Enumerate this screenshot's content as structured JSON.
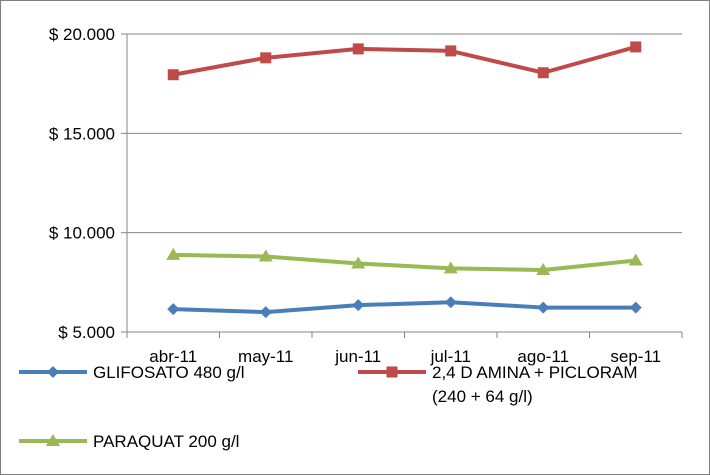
{
  "chart_data": {
    "type": "line",
    "title": "",
    "xlabel": "",
    "ylabel": "",
    "categories": [
      "abr-11",
      "may-11",
      "jun-11",
      "jul-11",
      "ago-11",
      "sep-11"
    ],
    "ylim": [
      5000,
      20000
    ],
    "y_ticks": [
      {
        "value": 5000,
        "label": "$ 5.000"
      },
      {
        "value": 10000,
        "label": "$ 10.000"
      },
      {
        "value": 15000,
        "label": "$ 15.000"
      },
      {
        "value": 20000,
        "label": "$ 20.000"
      }
    ],
    "grid": {
      "horizontal": true,
      "vertical": false
    },
    "legend_position": "bottom",
    "series": [
      {
        "name": "GLIFOSATO 480 g/l",
        "name_lines": [
          "GLIFOSATO 480 g/l"
        ],
        "color": "#4a7ebb",
        "marker": "diamond",
        "values": [
          6150,
          6000,
          6350,
          6500,
          6230,
          6230
        ]
      },
      {
        "name": "2,4 D AMINA + PICLORAM (240 + 64 g/l)",
        "name_lines": [
          "2,4 D AMINA + PICLORAM",
          "(240 + 64 g/l)"
        ],
        "color": "#be4b48",
        "marker": "square",
        "values": [
          17950,
          18800,
          19250,
          19150,
          18050,
          19350
        ]
      },
      {
        "name": "PARAQUAT 200 g/l",
        "name_lines": [
          "PARAQUAT 200 g/l"
        ],
        "color": "#98b954",
        "marker": "triangle",
        "values": [
          8880,
          8800,
          8450,
          8200,
          8120,
          8600
        ]
      }
    ]
  }
}
